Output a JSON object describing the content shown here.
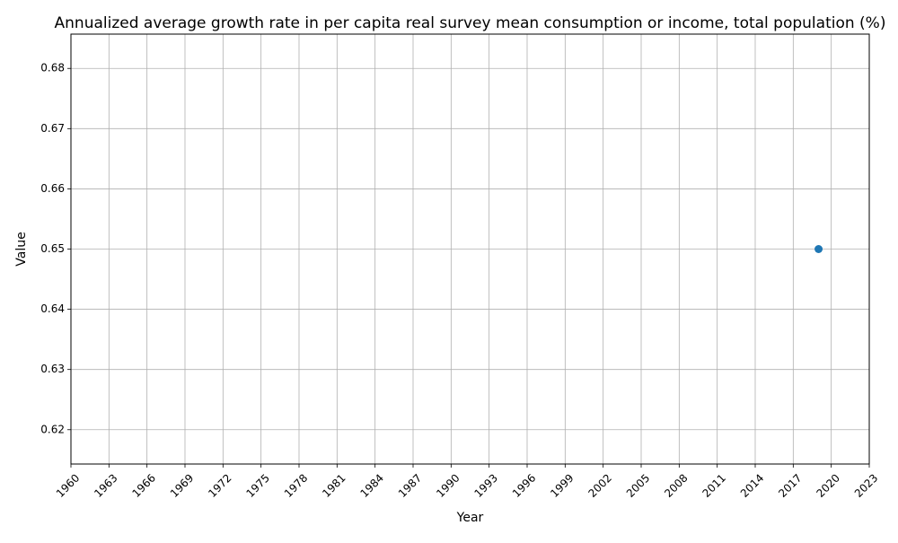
{
  "chart_data": {
    "type": "scatter",
    "title": "Annualized average growth rate in per capita real survey mean consumption or income, total population (%)",
    "xlabel": "Year",
    "ylabel": "Value",
    "xlim": [
      1960,
      2023
    ],
    "ylim": [
      0.6143,
      0.6857
    ],
    "x_ticks": [
      "1960",
      "1963",
      "1966",
      "1969",
      "1972",
      "1975",
      "1978",
      "1981",
      "1984",
      "1987",
      "1990",
      "1993",
      "1996",
      "1999",
      "2002",
      "2005",
      "2008",
      "2011",
      "2014",
      "2017",
      "2020",
      "2023"
    ],
    "y_ticks": [
      "0.62",
      "0.63",
      "0.64",
      "0.65",
      "0.66",
      "0.67",
      "0.68"
    ],
    "grid": true,
    "series": [
      {
        "x": [
          2019
        ],
        "y": [
          0.65
        ],
        "color": "#1f77b4",
        "marker": "circle"
      }
    ]
  }
}
